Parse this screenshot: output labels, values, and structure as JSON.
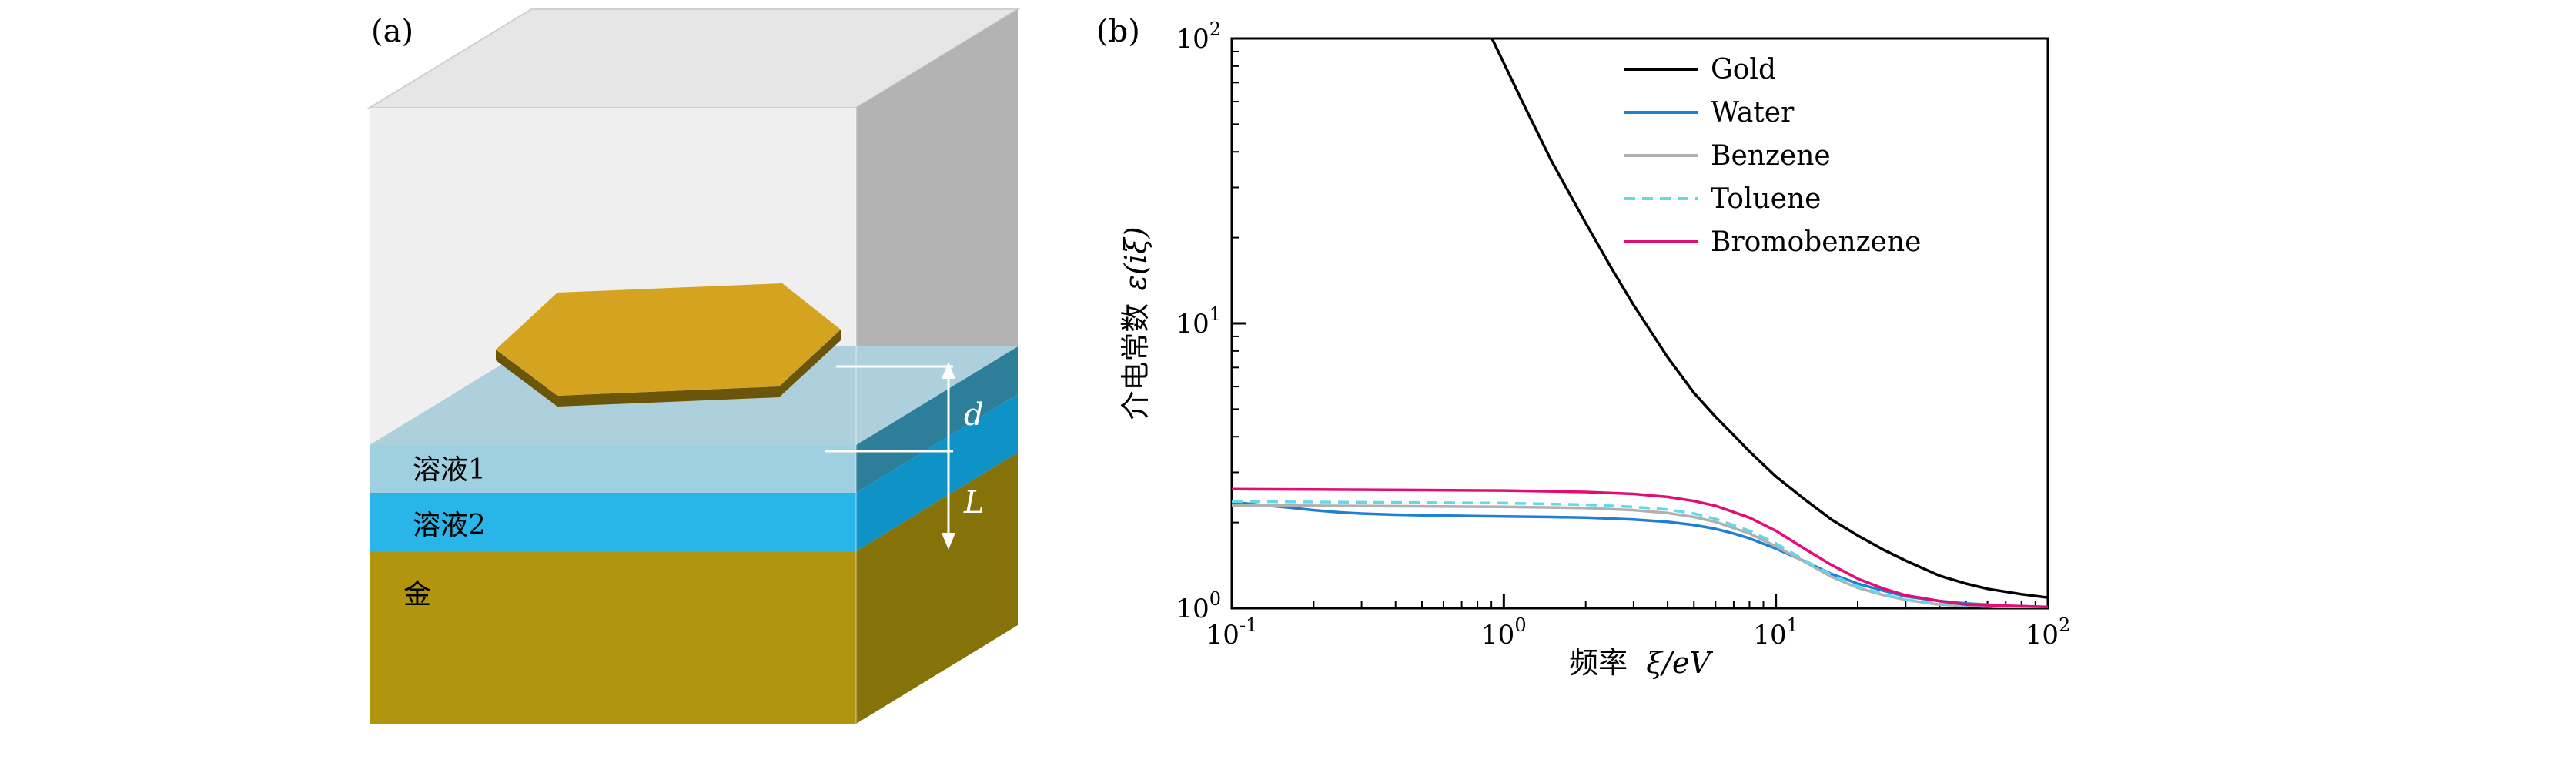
{
  "panel_a": {
    "tag": "(a)",
    "layer_labels": [
      "溶液1",
      "溶液2",
      "金"
    ],
    "marker_labels": [
      "d",
      "L"
    ],
    "colors": {
      "solution1_front": "#9fd0e2",
      "solution2_front": "#29b5e8",
      "gold_front": "#b2950f",
      "flake_top": "#d4a421"
    }
  },
  "panel_b": {
    "tag": "(b)"
  },
  "chart_data": {
    "type": "line",
    "xlabel_cn": "频率",
    "xlabel_math": "ξ/eV",
    "ylabel_cn": "介电常数",
    "ylabel_math": "ε(iξ)",
    "x_scale": "log",
    "y_scale": "log",
    "x_log_range": [
      -1,
      2
    ],
    "y_log_range": [
      0,
      2
    ],
    "x_ticks": [
      "-1",
      "0",
      "1",
      "2"
    ],
    "y_ticks": [
      "0",
      "1",
      "2"
    ],
    "legend_position": "upper right",
    "series": [
      {
        "name": "Gold",
        "color": "#000000",
        "dash": null,
        "x": [
          0.6,
          0.7,
          0.8,
          0.9,
          1.0,
          1.2,
          1.5,
          2,
          2.5,
          3,
          4,
          5,
          6,
          7,
          8,
          10,
          13,
          16,
          20,
          25,
          30,
          40,
          50,
          60,
          80,
          100
        ],
        "y": [
          226,
          166,
          128,
          101,
          82,
          57,
          37,
          22.5,
          15.5,
          11.6,
          7.6,
          5.7,
          4.7,
          4.05,
          3.55,
          2.9,
          2.38,
          2.05,
          1.8,
          1.6,
          1.47,
          1.3,
          1.22,
          1.17,
          1.12,
          1.09
        ]
      },
      {
        "name": "Water",
        "color": "#1e7fd4",
        "dash": null,
        "x": [
          0.1,
          0.13,
          0.16,
          0.2,
          0.25,
          0.3,
          0.4,
          0.5,
          0.7,
          1,
          1.5,
          2,
          3,
          4,
          5,
          6,
          7,
          8,
          10,
          13,
          16,
          20,
          25,
          30,
          40,
          50,
          70,
          100
        ],
        "y": [
          2.36,
          2.3,
          2.26,
          2.21,
          2.17,
          2.15,
          2.13,
          2.12,
          2.11,
          2.1,
          2.09,
          2.08,
          2.05,
          2.01,
          1.96,
          1.9,
          1.83,
          1.76,
          1.62,
          1.45,
          1.32,
          1.22,
          1.15,
          1.1,
          1.06,
          1.04,
          1.02,
          1.01
        ]
      },
      {
        "name": "Benzene",
        "color": "#b0b0b0",
        "dash": null,
        "x": [
          0.1,
          0.2,
          0.5,
          1,
          2,
          3,
          4,
          5,
          6,
          8,
          10,
          13,
          16,
          20,
          25,
          30,
          40,
          50,
          70,
          100
        ],
        "y": [
          2.3,
          2.29,
          2.28,
          2.27,
          2.25,
          2.21,
          2.16,
          2.09,
          2.01,
          1.83,
          1.65,
          1.44,
          1.29,
          1.18,
          1.11,
          1.07,
          1.03,
          1.02,
          1.01,
          1.0
        ]
      },
      {
        "name": "Toluene",
        "color": "#62d9e8",
        "dash": "14 9",
        "x": [
          0.1,
          0.2,
          0.5,
          1,
          2,
          3,
          4,
          5,
          6,
          8,
          10,
          13,
          16,
          20,
          25,
          30,
          40,
          50,
          70,
          100
        ],
        "y": [
          2.37,
          2.36,
          2.35,
          2.34,
          2.31,
          2.27,
          2.22,
          2.15,
          2.06,
          1.87,
          1.69,
          1.46,
          1.31,
          1.19,
          1.12,
          1.07,
          1.04,
          1.02,
          1.01,
          1.0
        ]
      },
      {
        "name": "Bromobenzene",
        "color": "#e20d74",
        "dash": null,
        "x": [
          0.1,
          0.2,
          0.5,
          1,
          2,
          3,
          4,
          5,
          6,
          8,
          10,
          13,
          16,
          20,
          25,
          30,
          40,
          50,
          70,
          100
        ],
        "y": [
          2.62,
          2.61,
          2.6,
          2.59,
          2.56,
          2.52,
          2.46,
          2.38,
          2.29,
          2.08,
          1.87,
          1.6,
          1.42,
          1.27,
          1.17,
          1.11,
          1.06,
          1.03,
          1.02,
          1.01
        ]
      }
    ]
  }
}
